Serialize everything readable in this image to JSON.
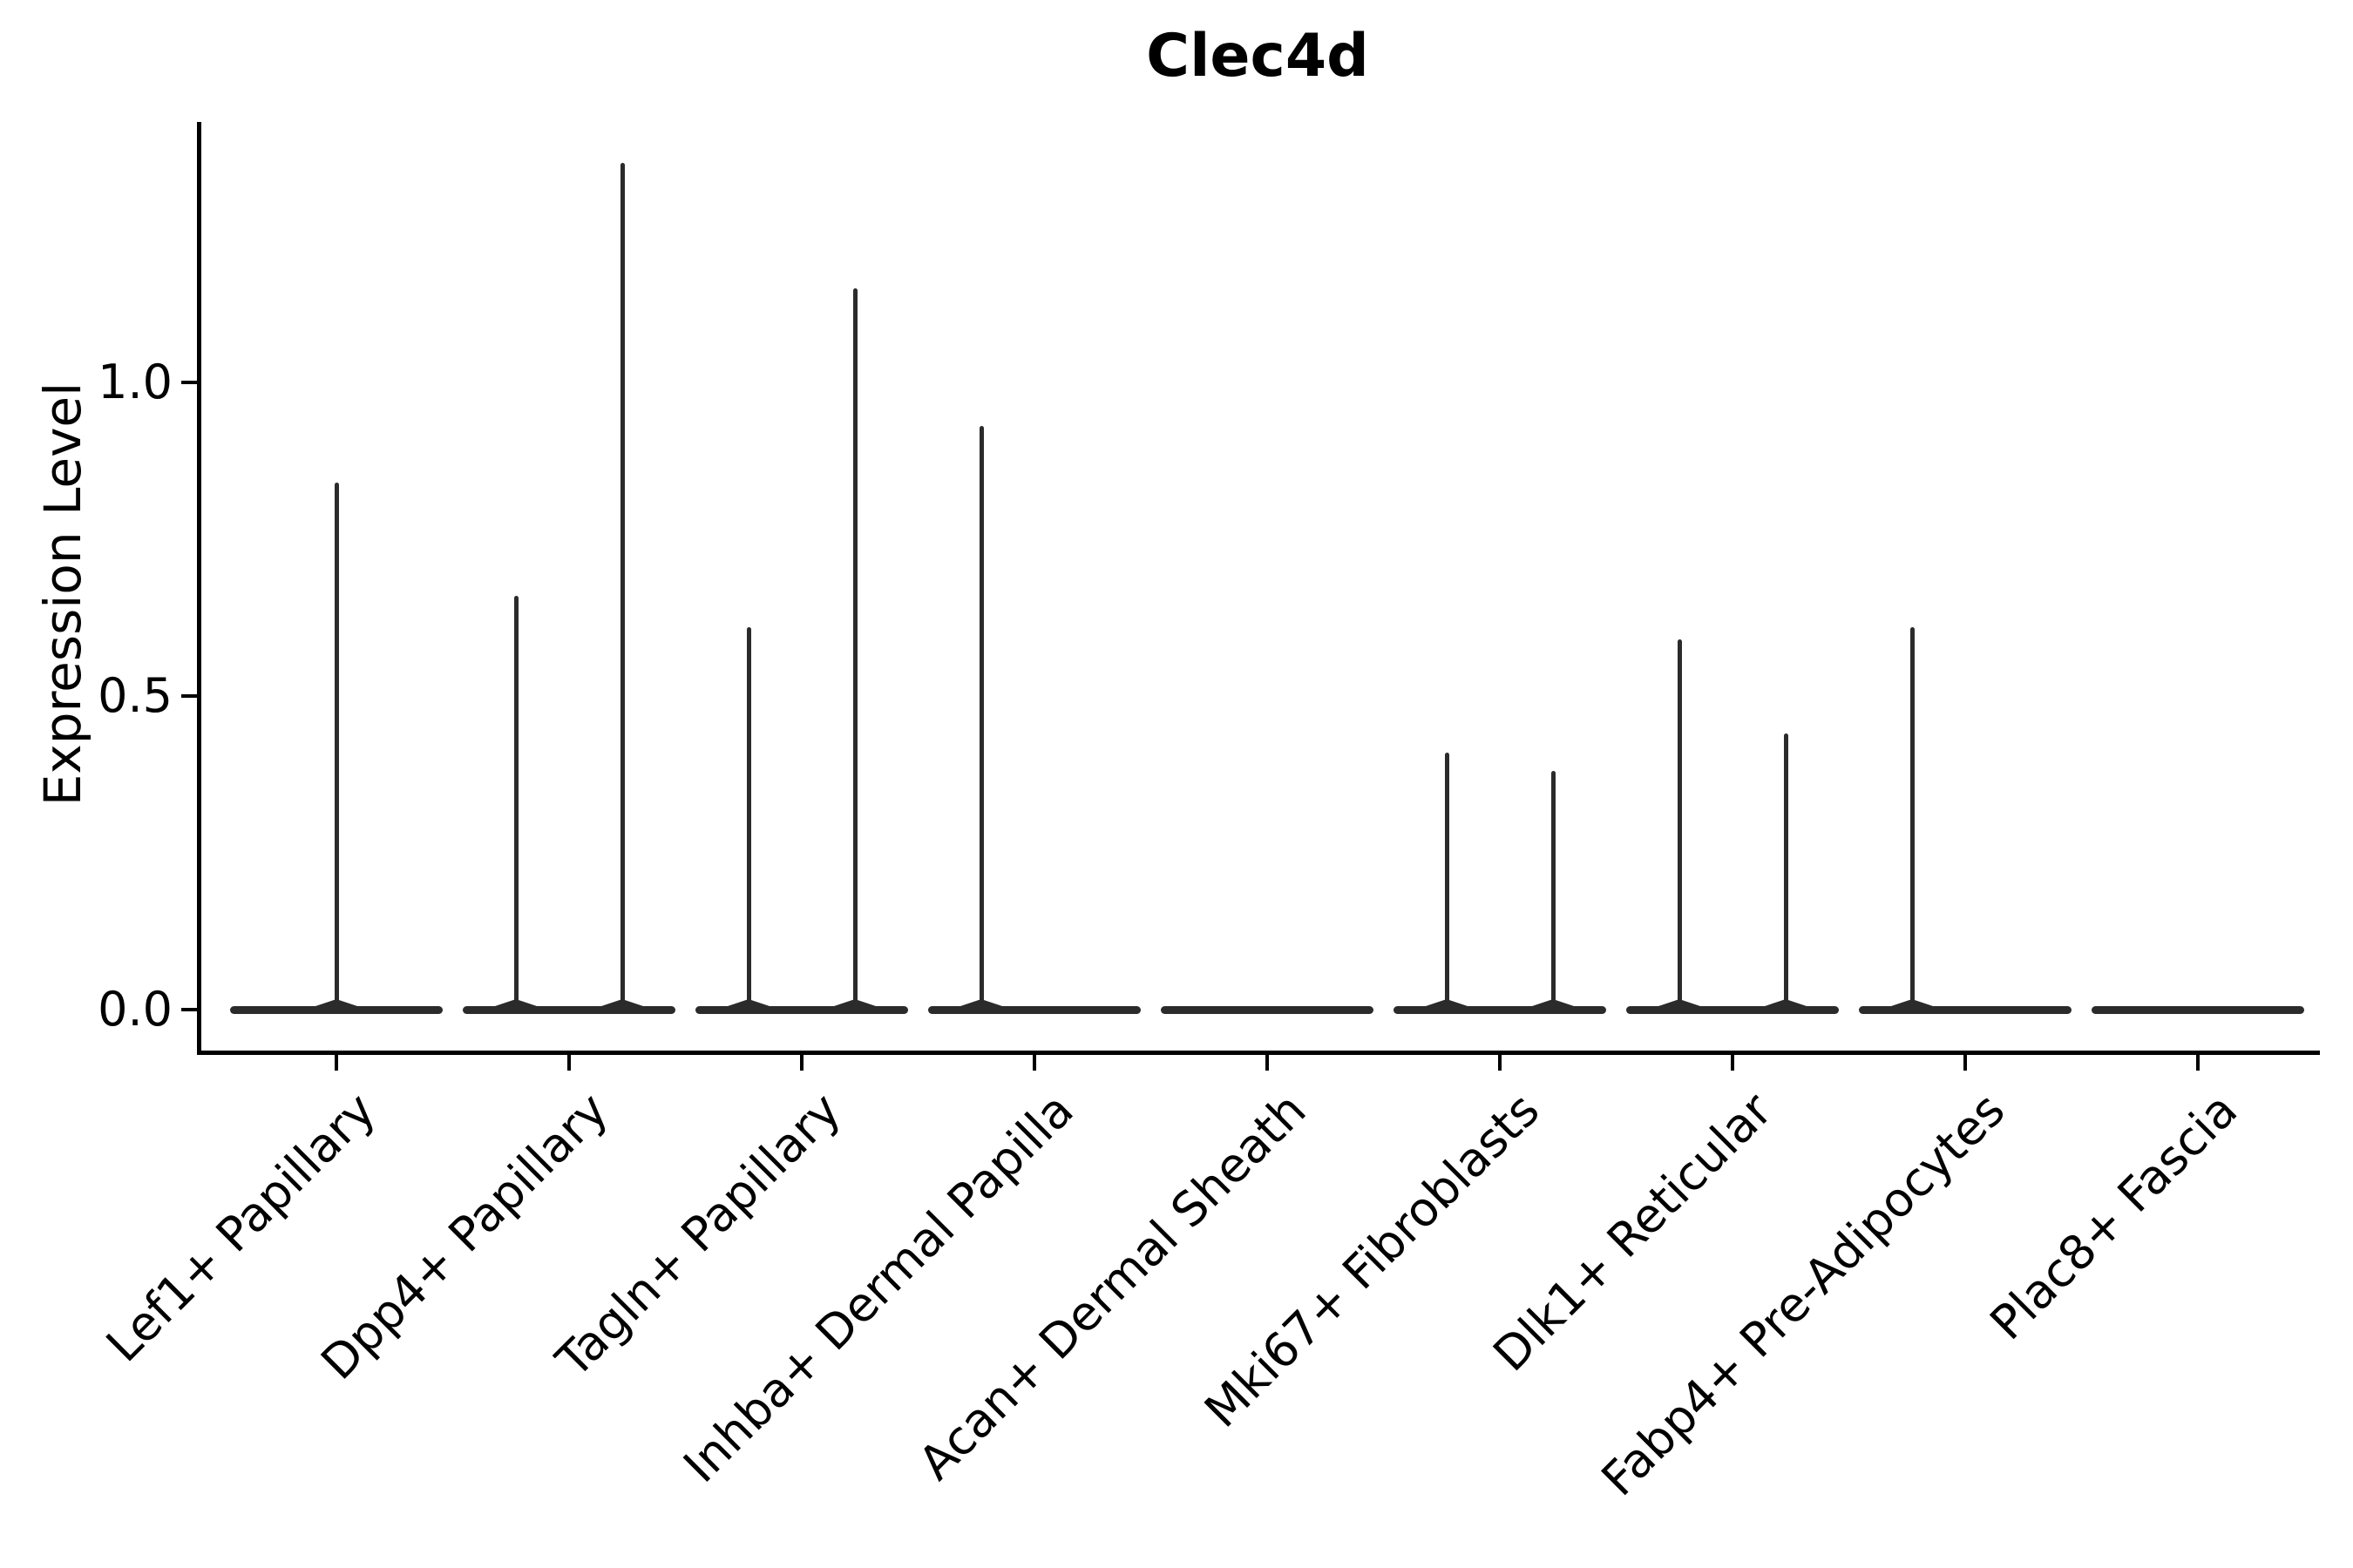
{
  "title": "Clec4d",
  "axes": {
    "y_label": "Expression Level",
    "y_tick_labels": [
      "0.0",
      "0.5",
      "1.0"
    ],
    "x_tick_labels": [
      "Lef1+ Papillary",
      "Dpp4+ Papillary",
      "Tagln+ Papillary",
      "Inhba+ Dermal Papilla",
      "Acan+ Dermal Sheath",
      "Mki67+ Fibroblasts",
      "Dlk1+ Reticular",
      "Fabp4+ Pre-Adipocytes",
      "Plac8+ Fascia"
    ]
  },
  "chart_data": {
    "type": "violin",
    "title": "Clec4d",
    "xlabel": "",
    "ylabel": "Expression Level",
    "ylim": [
      -0.07,
      1.41
    ],
    "y_ticks": [
      0.0,
      0.5,
      1.0
    ],
    "grid": false,
    "legend": "none",
    "line_color": "#2b2b2b",
    "axis_color": "#000000",
    "description": "Violin plot of Clec4d expression per fibroblast cluster; each violin is flat at 0 (most cells express 0) with thin spikes rising to the maximum expressed value. Several categories show two dodged sub-violin spikes (left/right); Acan+ Dermal Sheath and Plac8+ Fascia are entirely 0.",
    "categories": [
      "Lef1+ Papillary",
      "Dpp4+ Papillary",
      "Tagln+ Papillary",
      "Inhba+ Dermal Papilla",
      "Acan+ Dermal Sheath",
      "Mki67+ Fibroblasts",
      "Dlk1+ Reticular",
      "Fabp4+ Pre-Adipocytes",
      "Plac8+ Fascia"
    ],
    "violins": [
      {
        "category": "Lef1+ Papillary",
        "baseline_value": 0.0,
        "spikes": [
          {
            "position": "center",
            "max": 0.84
          }
        ]
      },
      {
        "category": "Dpp4+ Papillary",
        "baseline_value": 0.0,
        "spikes": [
          {
            "position": "left",
            "max": 0.66
          },
          {
            "position": "right",
            "max": 1.35
          }
        ]
      },
      {
        "category": "Tagln+ Papillary",
        "baseline_value": 0.0,
        "spikes": [
          {
            "position": "left",
            "max": 0.61
          },
          {
            "position": "right",
            "max": 1.15
          }
        ]
      },
      {
        "category": "Inhba+ Dermal Papilla",
        "baseline_value": 0.0,
        "spikes": [
          {
            "position": "left",
            "max": 0.93
          }
        ]
      },
      {
        "category": "Acan+ Dermal Sheath",
        "baseline_value": 0.0,
        "spikes": []
      },
      {
        "category": "Mki67+ Fibroblasts",
        "baseline_value": 0.0,
        "spikes": [
          {
            "position": "left",
            "max": 0.41
          },
          {
            "position": "right",
            "max": 0.38
          }
        ]
      },
      {
        "category": "Dlk1+ Reticular",
        "baseline_value": 0.0,
        "spikes": [
          {
            "position": "left",
            "max": 0.59
          },
          {
            "position": "right",
            "max": 0.44
          }
        ]
      },
      {
        "category": "Fabp4+ Pre-Adipocytes",
        "baseline_value": 0.0,
        "spikes": [
          {
            "position": "left",
            "max": 0.61
          }
        ]
      },
      {
        "category": "Plac8+ Fascia",
        "baseline_value": 0.0,
        "spikes": []
      }
    ]
  }
}
